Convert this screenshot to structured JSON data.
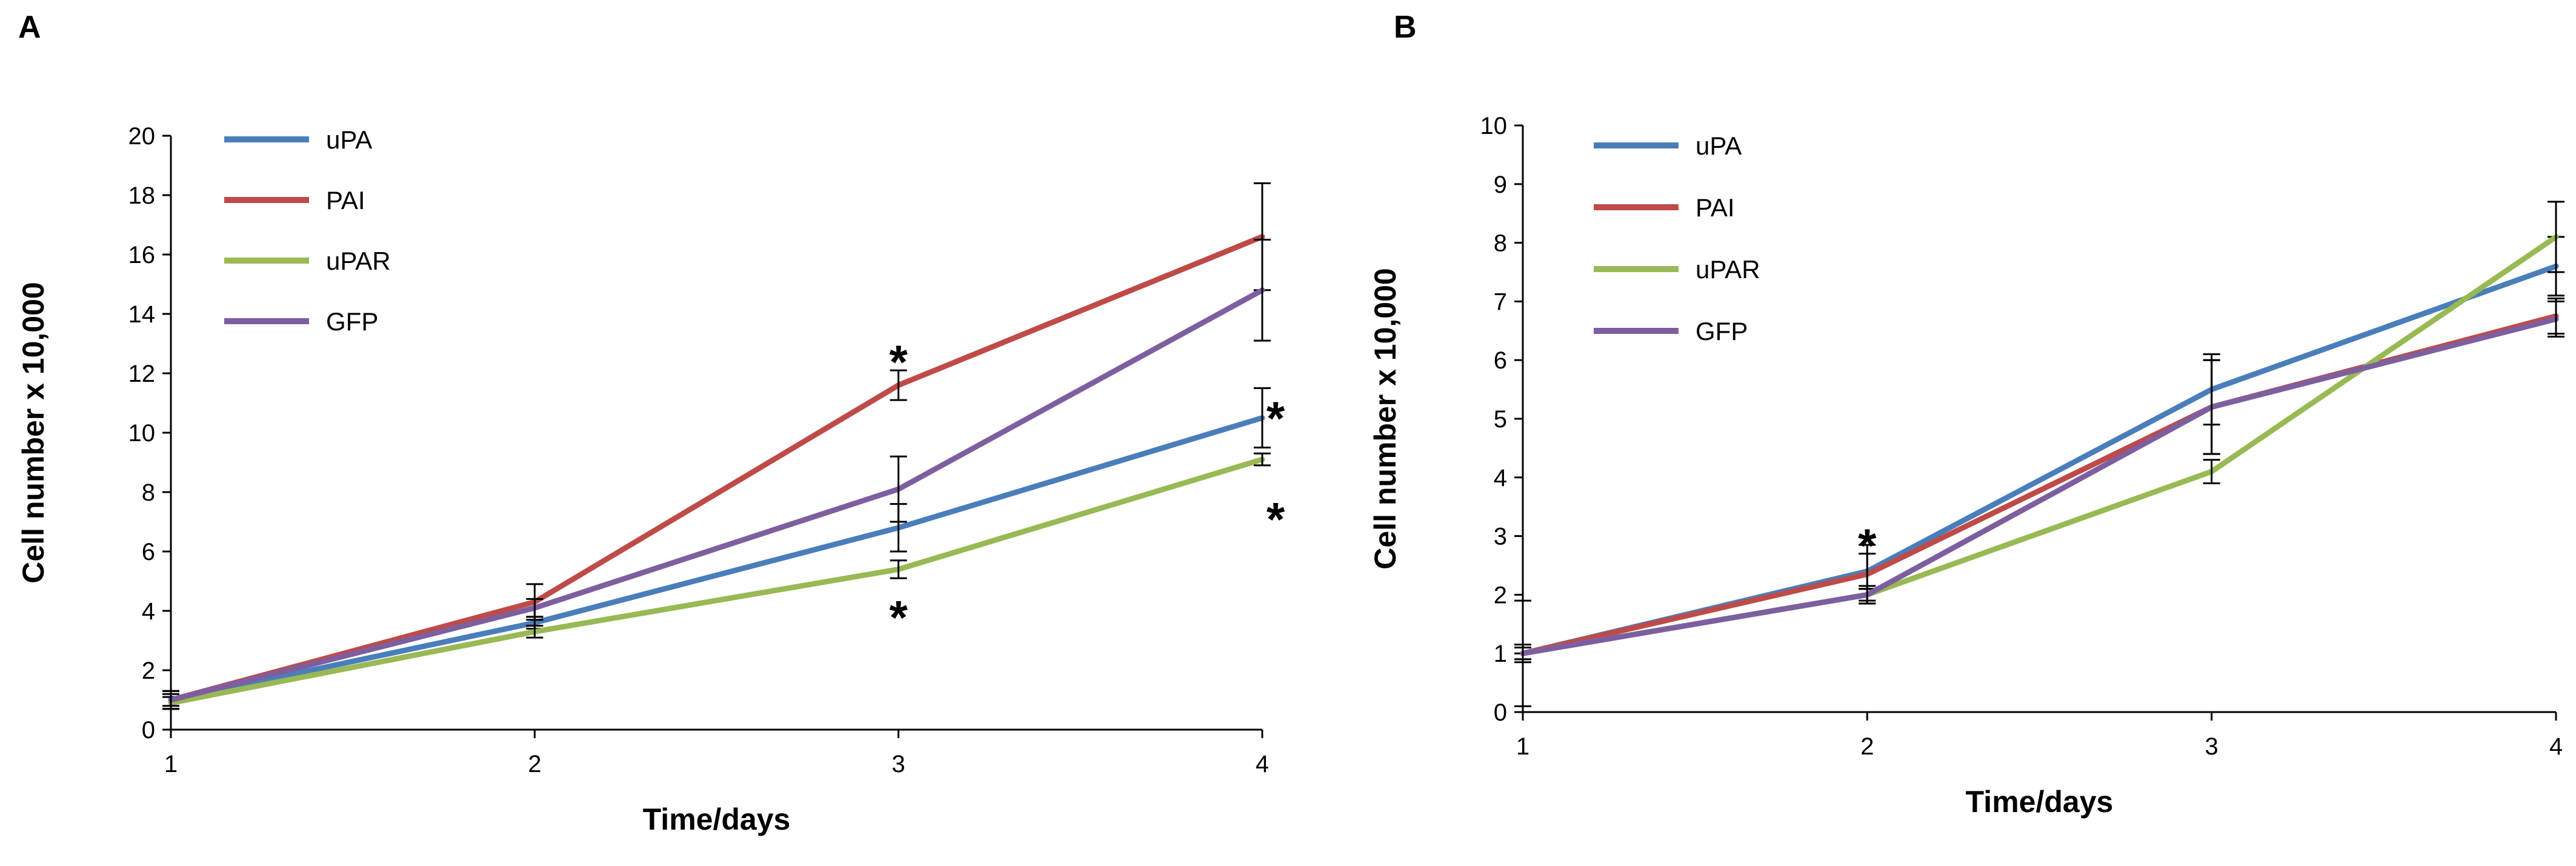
{
  "chart_data": [
    {
      "panel": "A",
      "type": "line",
      "xlabel": "Time/days",
      "ylabel": "Cell number x 10,000",
      "x": [
        1,
        2,
        3,
        4
      ],
      "xticks": [
        "1",
        "2",
        "3",
        "4"
      ],
      "ylim": [
        0,
        20
      ],
      "yticks": [
        "0",
        "2",
        "4",
        "6",
        "8",
        "10",
        "12",
        "14",
        "16",
        "18",
        "20"
      ],
      "legend_position": "top-left",
      "series": [
        {
          "name": "uPA",
          "color": "#4a7ebb",
          "values": [
            1.0,
            3.6,
            6.8,
            10.5
          ],
          "errors": [
            0.3,
            0.2,
            0.8,
            1.0
          ]
        },
        {
          "name": "PAI",
          "color": "#be4b48",
          "values": [
            1.0,
            4.3,
            11.6,
            16.6
          ],
          "errors": [
            0.3,
            0.6,
            0.5,
            1.8
          ]
        },
        {
          "name": "uPAR",
          "color": "#98b954",
          "values": [
            0.9,
            3.3,
            5.4,
            9.1
          ],
          "errors": [
            0.2,
            0.2,
            0.3,
            0.2
          ]
        },
        {
          "name": "GFP",
          "color": "#7d5fa0",
          "values": [
            1.0,
            4.1,
            8.1,
            14.8
          ],
          "errors": [
            0.2,
            0.3,
            1.1,
            1.7
          ]
        }
      ],
      "annotations": [
        {
          "text": "*",
          "x": 3,
          "y": 12.9
        },
        {
          "text": "*",
          "x": 3,
          "y": 4.3
        },
        {
          "text": "*",
          "x": 4,
          "y": 11.0
        },
        {
          "text": "*",
          "x": 4,
          "y": 7.6
        }
      ]
    },
    {
      "panel": "B",
      "type": "line",
      "xlabel": "Time/days",
      "ylabel": "Cell number x 10,000",
      "x": [
        1,
        2,
        3,
        4
      ],
      "xticks": [
        "1",
        "2",
        "3",
        "4"
      ],
      "ylim": [
        0,
        10
      ],
      "yticks": [
        "0",
        "1",
        "2",
        "3",
        "4",
        "5",
        "6",
        "7",
        "8",
        "9",
        "10"
      ],
      "legend_position": "top-left",
      "series": [
        {
          "name": "uPA",
          "color": "#4a7ebb",
          "values": [
            1.0,
            2.4,
            5.5,
            7.6
          ],
          "errors": [
            0.15,
            0.3,
            0.6,
            0.5
          ]
        },
        {
          "name": "PAI",
          "color": "#be4b48",
          "values": [
            1.0,
            2.35,
            5.2,
            6.75
          ],
          "errors": [
            0.9,
            0.5,
            0.8,
            0.3
          ]
        },
        {
          "name": "uPAR",
          "color": "#98b954",
          "values": [
            1.0,
            2.0,
            4.1,
            8.1
          ],
          "errors": [
            0.1,
            0.1,
            0.2,
            0.6
          ]
        },
        {
          "name": "GFP",
          "color": "#7d5fa0",
          "values": [
            1.0,
            2.0,
            5.2,
            6.7
          ],
          "errors": [
            0.1,
            0.15,
            0.8,
            0.3
          ]
        }
      ],
      "annotations": [
        {
          "text": "*",
          "x": 2,
          "y": 3.1
        }
      ]
    }
  ]
}
